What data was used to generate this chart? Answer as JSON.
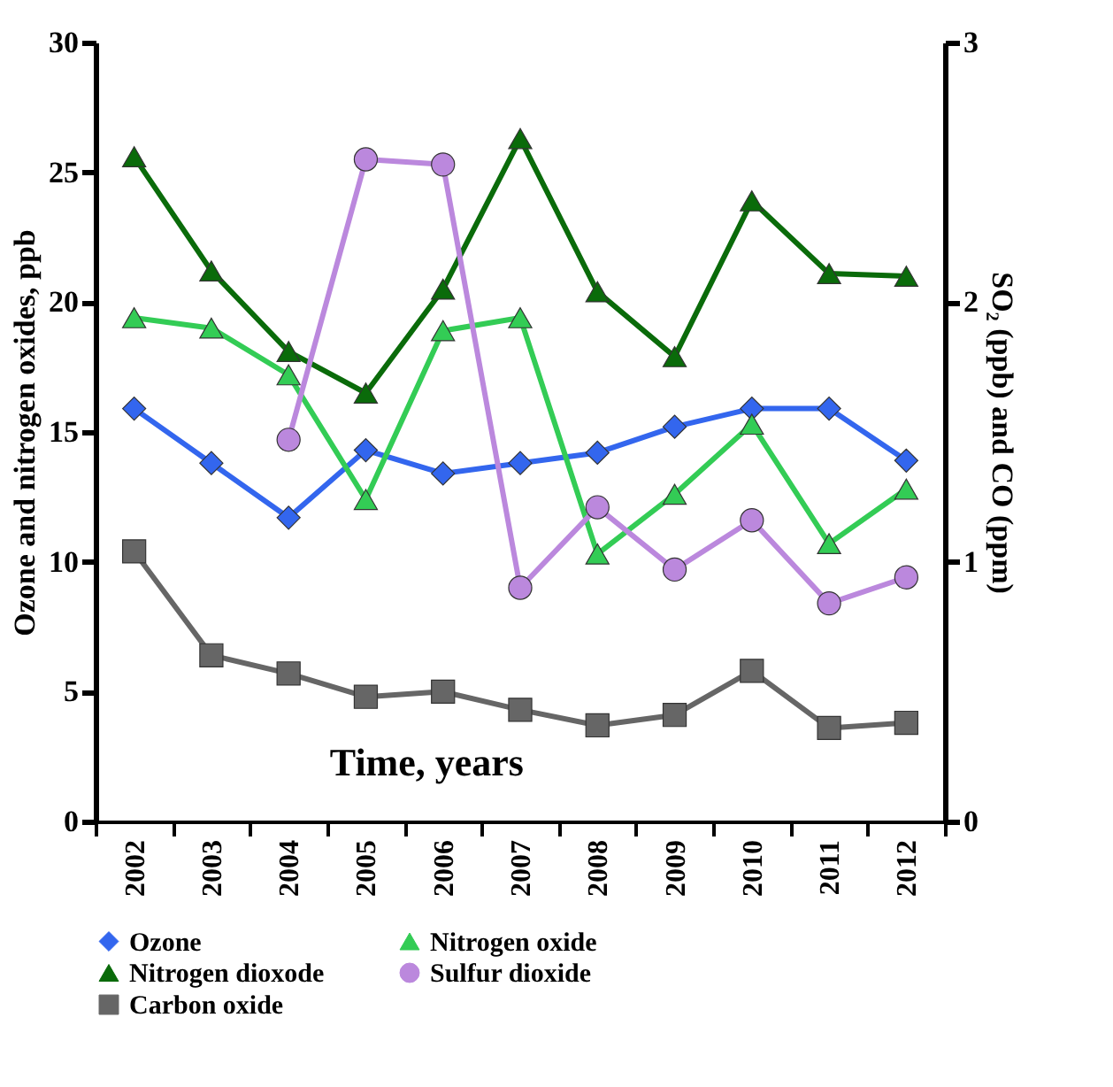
{
  "chart_data": {
    "type": "line",
    "xlabel": "Time, years",
    "ylabel": "Ozone and nitrogen oxides, ppb",
    "y2label": "SO₂ (ppb) and CO (ppm)",
    "categories": [
      "2002",
      "2003",
      "2004",
      "2005",
      "2006",
      "2007",
      "2008",
      "2009",
      "2010",
      "2011",
      "2012"
    ],
    "ylim": [
      0,
      30
    ],
    "yticks": [
      0,
      5,
      10,
      15,
      20,
      25,
      30
    ],
    "y2lim": [
      0,
      3
    ],
    "y2ticks": [
      0,
      1,
      2,
      3
    ],
    "grid": false,
    "legend": "bottom",
    "series": [
      {
        "name": "Ozone",
        "color": "#3366ee",
        "marker": "diamond",
        "values": [
          15.9,
          13.8,
          11.7,
          14.3,
          13.4,
          13.8,
          14.2,
          15.2,
          15.9,
          15.9,
          13.9
        ]
      },
      {
        "name": "Nitrogen oxide",
        "color": "#33cc55",
        "marker": "triangle",
        "values": [
          19.4,
          19.0,
          17.2,
          12.4,
          18.9,
          19.4,
          10.3,
          12.6,
          15.3,
          10.7,
          12.8
        ]
      },
      {
        "name": "Nitrogen dioxode",
        "color": "#0a6b0a",
        "marker": "triangle",
        "values": [
          25.6,
          21.2,
          18.1,
          16.5,
          20.5,
          26.3,
          20.4,
          17.9,
          23.9,
          21.1,
          21.0
        ]
      },
      {
        "name": "Sulfur dioxide",
        "color": "#bb88dd",
        "marker": "circle",
        "axis": "y2",
        "values": [
          null,
          null,
          1.47,
          2.55,
          2.53,
          0.9,
          1.21,
          0.97,
          1.16,
          0.84,
          0.94
        ]
      },
      {
        "name": "Carbon oxide",
        "color": "#666666",
        "marker": "square",
        "axis": "y2",
        "values": [
          1.04,
          0.64,
          0.57,
          0.48,
          0.5,
          0.43,
          0.37,
          0.41,
          0.58,
          0.36,
          0.38
        ]
      }
    ]
  }
}
